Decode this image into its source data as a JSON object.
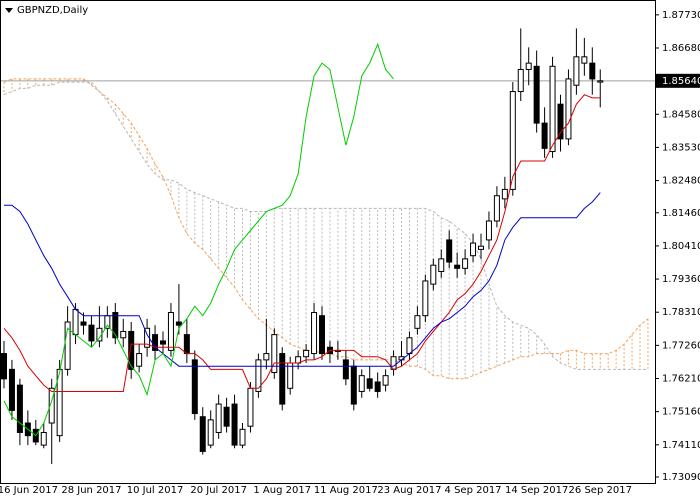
{
  "chart_data": {
    "type": "candlestick",
    "title": "GBPNZD,Daily",
    "categories": [
      null,
      null,
      null,
      "16 Jun 2017",
      null,
      null,
      null,
      null,
      null,
      null,
      null,
      "28 Jun 2017",
      null,
      null,
      null,
      null,
      null,
      null,
      null,
      "10 Jul 2017",
      null,
      null,
      null,
      null,
      null,
      null,
      null,
      "20 Jul 2017",
      null,
      null,
      null,
      null,
      null,
      null,
      null,
      "1 Aug 2017",
      null,
      null,
      null,
      null,
      null,
      null,
      null,
      "11 Aug 2017",
      null,
      null,
      null,
      null,
      null,
      null,
      null,
      "23 Aug 2017",
      null,
      null,
      null,
      null,
      null,
      null,
      null,
      "4 Sep 2017",
      null,
      null,
      null,
      null,
      null,
      null,
      null,
      "14 Sep 2017",
      null,
      null,
      null,
      null,
      null,
      null,
      null,
      "26 Sep 2017",
      null,
      null,
      null,
      null,
      null,
      null
    ],
    "open": [
      1.77,
      1.765,
      1.76,
      1.748,
      1.746,
      1.741,
      1.748,
      1.744,
      1.765,
      1.776,
      1.78,
      1.779,
      1.774,
      1.778,
      1.783,
      1.775,
      1.777,
      1.766,
      1.772,
      1.776,
      1.774,
      1.771,
      1.78,
      1.776,
      1.768,
      1.75,
      1.741,
      1.745,
      1.753,
      1.754,
      1.741,
      1.747,
      1.758,
      1.768,
      1.764,
      1.77,
      1.759,
      1.767,
      1.769,
      1.77,
      1.782,
      1.772,
      1.771,
      1.768,
      1.766,
      1.758,
      1.762,
      1.761,
      1.76,
      1.765,
      1.768,
      1.77,
      1.778,
      1.782,
      1.792,
      1.796,
      1.806,
      1.798,
      1.797,
      1.801,
      1.803,
      1.806,
      1.812,
      1.819,
      1.822,
      1.853,
      1.86,
      1.861,
      1.843,
      1.834,
      1.849,
      1.838,
      1.855,
      1.862,
      1.862,
      1.856,
      null,
      null,
      null,
      null,
      null,
      null
    ],
    "high": [
      1.774,
      1.768,
      1.762,
      1.752,
      1.749,
      1.748,
      1.762,
      1.768,
      1.785,
      1.786,
      1.783,
      1.782,
      1.785,
      1.785,
      1.786,
      1.781,
      1.78,
      1.773,
      1.781,
      1.779,
      1.777,
      1.786,
      1.792,
      1.781,
      1.771,
      1.753,
      1.752,
      1.757,
      1.756,
      1.757,
      1.748,
      1.761,
      1.77,
      1.781,
      1.778,
      1.772,
      1.769,
      1.771,
      1.773,
      1.786,
      1.785,
      1.774,
      1.774,
      1.771,
      1.768,
      1.765,
      1.766,
      1.764,
      1.765,
      1.771,
      1.774,
      1.777,
      1.785,
      1.795,
      1.8,
      1.803,
      1.809,
      1.802,
      1.803,
      1.808,
      1.808,
      1.815,
      1.823,
      1.826,
      1.856,
      1.873,
      1.867,
      1.866,
      1.848,
      1.864,
      1.852,
      1.86,
      1.873,
      1.87,
      1.867,
      1.86,
      null,
      null,
      null,
      null,
      null,
      null
    ],
    "low": [
      1.759,
      1.749,
      1.741,
      1.741,
      1.741,
      1.74,
      1.735,
      1.742,
      1.763,
      1.773,
      1.776,
      1.772,
      1.772,
      1.775,
      1.773,
      1.772,
      1.762,
      1.764,
      1.769,
      1.768,
      1.77,
      1.769,
      1.776,
      1.767,
      1.749,
      1.738,
      1.74,
      1.743,
      1.745,
      1.74,
      1.74,
      1.745,
      1.756,
      1.765,
      1.762,
      1.752,
      1.757,
      1.765,
      1.767,
      1.768,
      1.768,
      1.767,
      1.768,
      1.76,
      1.752,
      1.756,
      1.758,
      1.756,
      1.758,
      1.763,
      1.766,
      1.768,
      1.776,
      1.78,
      1.79,
      1.794,
      1.797,
      1.794,
      1.795,
      1.799,
      1.8,
      1.803,
      1.81,
      1.816,
      1.82,
      1.85,
      1.855,
      1.84,
      1.832,
      1.832,
      1.834,
      1.836,
      1.852,
      1.858,
      1.852,
      1.848,
      null,
      null,
      null,
      null,
      null,
      null
    ],
    "close": [
      1.762,
      1.752,
      1.745,
      1.744,
      1.742,
      1.745,
      1.759,
      1.765,
      1.78,
      1.784,
      1.779,
      1.774,
      1.778,
      1.782,
      1.775,
      1.777,
      1.765,
      1.77,
      1.778,
      1.771,
      1.773,
      1.783,
      1.779,
      1.77,
      1.751,
      1.739,
      1.749,
      1.754,
      1.747,
      1.741,
      1.746,
      1.759,
      1.768,
      1.77,
      1.776,
      1.754,
      1.767,
      1.769,
      1.771,
      1.783,
      1.77,
      1.77,
      1.771,
      1.762,
      1.754,
      1.763,
      1.759,
      1.758,
      1.763,
      1.769,
      1.769,
      1.775,
      1.782,
      1.793,
      1.798,
      1.8,
      1.799,
      1.797,
      1.8,
      1.805,
      1.804,
      1.812,
      1.82,
      1.822,
      1.853,
      1.86,
      1.862,
      1.843,
      1.835,
      1.861,
      1.838,
      1.857,
      1.864,
      1.864,
      1.857,
      1.8564,
      null,
      null,
      null,
      null,
      null,
      null
    ],
    "up_color": "#ffffff",
    "down_color": "#000000",
    "wick_color": "#000000",
    "lines": [
      {
        "color": "#dd0000",
        "values": [
          1.778,
          1.775,
          1.771,
          1.766,
          1.763,
          1.76,
          1.758,
          1.758,
          1.758,
          1.758,
          1.758,
          1.758,
          1.758,
          1.758,
          1.758,
          1.758,
          1.773,
          1.773,
          1.773,
          1.772,
          1.772,
          1.772,
          1.772,
          1.77,
          1.77,
          1.768,
          1.765,
          1.765,
          1.765,
          1.765,
          1.765,
          1.759,
          1.759,
          1.762,
          1.767,
          1.767,
          1.767,
          1.767,
          1.768,
          1.768,
          1.769,
          1.771,
          1.771,
          1.771,
          1.771,
          1.769,
          1.769,
          1.769,
          1.768,
          1.765,
          1.766,
          1.768,
          1.77,
          1.774,
          1.777,
          1.78,
          1.783,
          1.787,
          1.789,
          1.792,
          1.796,
          1.801,
          1.806,
          1.815,
          1.826,
          1.831,
          1.831,
          1.831,
          1.831,
          1.836,
          1.84,
          1.843,
          1.849,
          1.852,
          1.851,
          1.851,
          null,
          null,
          null,
          null,
          null,
          null
        ]
      },
      {
        "color": "#0000cc",
        "values": [
          1.817,
          1.817,
          1.815,
          1.811,
          1.806,
          1.801,
          1.797,
          1.792,
          1.788,
          1.784,
          1.782,
          1.782,
          1.782,
          1.782,
          1.782,
          1.782,
          1.782,
          1.782,
          1.776,
          1.772,
          1.77,
          1.768,
          1.766,
          1.766,
          1.766,
          1.766,
          1.766,
          1.766,
          1.766,
          1.766,
          1.766,
          1.766,
          1.766,
          1.766,
          1.766,
          1.766,
          1.766,
          1.766,
          1.766,
          1.766,
          1.766,
          1.766,
          1.766,
          1.766,
          1.766,
          1.766,
          1.766,
          1.766,
          1.766,
          1.766,
          1.768,
          1.77,
          1.772,
          1.775,
          1.778,
          1.78,
          1.781,
          1.783,
          1.785,
          1.788,
          1.79,
          1.793,
          1.798,
          1.806,
          1.81,
          1.813,
          1.813,
          1.813,
          1.813,
          1.813,
          1.813,
          1.813,
          1.813,
          1.816,
          1.818,
          1.821,
          null,
          null,
          null,
          null,
          null,
          null
        ]
      },
      {
        "color": "#00cc00",
        "values": [
          1.755,
          1.75,
          1.748,
          1.746,
          1.744,
          1.748,
          1.755,
          1.764,
          1.778,
          1.776,
          1.774,
          1.772,
          1.775,
          1.779,
          1.776,
          1.771,
          1.766,
          1.763,
          1.757,
          1.768,
          1.77,
          1.766,
          1.778,
          1.781,
          1.785,
          1.782,
          1.786,
          1.792,
          1.797,
          1.803,
          1.806,
          1.809,
          1.812,
          1.815,
          1.816,
          1.817,
          1.82,
          1.827,
          1.845,
          1.858,
          1.862,
          1.86,
          1.848,
          1.836,
          1.845,
          1.858,
          1.862,
          1.868,
          1.86,
          1.857,
          null,
          null,
          null,
          null,
          null,
          null,
          null,
          null,
          null,
          null,
          null,
          null,
          null,
          null,
          null,
          null,
          null,
          null,
          null,
          null,
          null,
          null,
          null,
          null,
          null,
          null,
          null,
          null,
          null,
          null,
          null,
          null
        ]
      }
    ],
    "cloud": {
      "span_a": {
        "color": "#f4a460",
        "values": [
          1.856,
          1.857,
          1.857,
          1.857,
          1.857,
          1.857,
          1.857,
          1.857,
          1.857,
          1.857,
          1.857,
          1.855,
          1.853,
          1.851,
          1.849,
          1.846,
          1.843,
          1.839,
          1.835,
          1.83,
          1.826,
          1.82,
          1.813,
          1.808,
          1.805,
          1.803,
          1.8,
          1.797,
          1.794,
          1.791,
          1.787,
          1.784,
          1.781,
          1.779,
          1.777,
          1.775,
          1.773,
          1.772,
          1.771,
          1.771,
          1.77,
          1.77,
          1.769,
          1.769,
          1.768,
          1.768,
          1.768,
          1.768,
          1.768,
          1.768,
          1.767,
          1.766,
          1.766,
          1.765,
          1.763,
          1.763,
          1.762,
          1.762,
          1.762,
          1.763,
          1.764,
          1.765,
          1.766,
          1.767,
          1.768,
          1.769,
          1.769,
          1.77,
          1.77,
          1.77,
          1.77,
          1.771,
          1.771,
          1.77,
          1.77,
          1.77,
          1.77,
          1.771,
          1.773,
          1.776,
          1.779,
          1.781
        ]
      },
      "span_b": {
        "color": "#b8b8b8",
        "values": [
          1.852,
          1.853,
          1.854,
          1.854,
          1.855,
          1.855,
          1.855,
          1.856,
          1.856,
          1.856,
          1.856,
          1.856,
          1.853,
          1.85,
          1.846,
          1.842,
          1.838,
          1.834,
          1.83,
          1.827,
          1.825,
          1.825,
          1.824,
          1.822,
          1.821,
          1.82,
          1.819,
          1.818,
          1.817,
          1.816,
          1.816,
          1.815,
          1.815,
          1.815,
          1.816,
          1.816,
          1.816,
          1.816,
          1.816,
          1.816,
          1.816,
          1.816,
          1.816,
          1.816,
          1.816,
          1.816,
          1.816,
          1.816,
          1.816,
          1.816,
          1.816,
          1.816,
          1.816,
          1.816,
          1.815,
          1.813,
          1.812,
          1.81,
          1.808,
          1.805,
          1.8,
          1.792,
          1.785,
          1.782,
          1.78,
          1.779,
          1.778,
          1.776,
          1.773,
          1.769,
          1.767,
          1.766,
          1.765,
          1.765,
          1.765,
          1.765,
          1.765,
          1.765,
          1.765,
          1.765,
          1.765,
          1.765
        ]
      }
    },
    "last_price": {
      "value": 1.8564,
      "label": "1.85640"
    },
    "ylim": [
      1.729,
      1.882
    ],
    "yticks": [
      {
        "value": 1.8773,
        "label": "1.87730"
      },
      {
        "value": 1.8668,
        "label": "1.86680"
      },
      {
        "value": 1.8458,
        "label": "1.84580"
      },
      {
        "value": 1.8353,
        "label": "1.83530"
      },
      {
        "value": 1.8248,
        "label": "1.82480"
      },
      {
        "value": 1.8146,
        "label": "1.81460"
      },
      {
        "value": 1.8041,
        "label": "1.80410"
      },
      {
        "value": 1.7936,
        "label": "1.79360"
      },
      {
        "value": 1.7831,
        "label": "1.78310"
      },
      {
        "value": 1.7726,
        "label": "1.77260"
      },
      {
        "value": 1.7621,
        "label": "1.76210"
      },
      {
        "value": 1.7516,
        "label": "1.75160"
      },
      {
        "value": 1.7411,
        "label": "1.74110"
      },
      {
        "value": 1.7309,
        "label": "1.73090"
      }
    ]
  }
}
